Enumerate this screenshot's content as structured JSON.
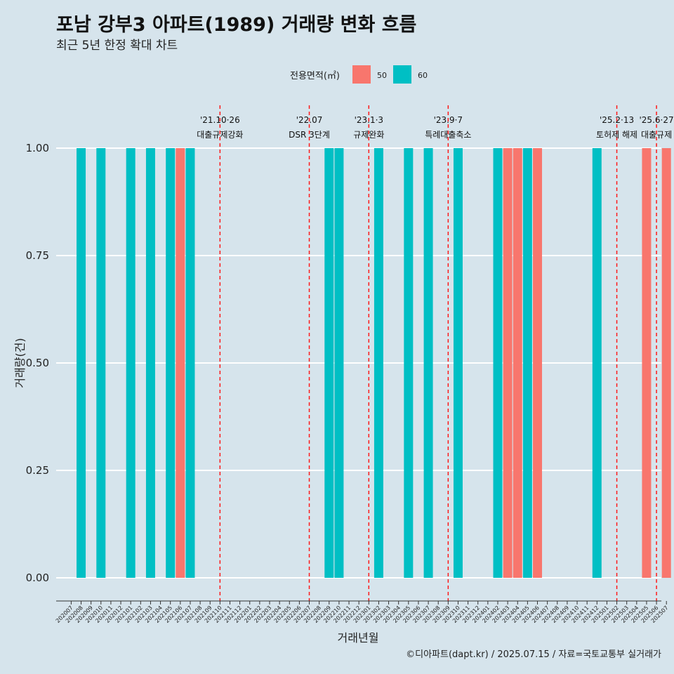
{
  "title": "포남 강부3 아파트(1989) 거래량 변화 흐름",
  "subtitle": "최근 5년 한정 확대 차트",
  "caption": "©디아파트(dapt.kr) / 2025.07.15 / 자료=국토교통부 실거래가",
  "colors": {
    "background": "#d6e4ec",
    "s50": "#f8766d",
    "s60": "#00bfc4",
    "event_line": "#ff1a1a",
    "grid": "#ffffff"
  },
  "chart_data": {
    "type": "bar",
    "xlabel": "거래년월",
    "ylabel": "거래량(건)",
    "ylim": [
      0,
      1
    ],
    "yticks": [
      "0.00",
      "0.25",
      "0.50",
      "0.75",
      "1.00"
    ],
    "legend": {
      "title": "전용면적(㎡)",
      "position": "top",
      "entries": [
        "50",
        "60"
      ]
    },
    "categories": [
      "202007",
      "202008",
      "202009",
      "202010",
      "202011",
      "202012",
      "202101",
      "202102",
      "202103",
      "202104",
      "202105",
      "202106",
      "202107",
      "202108",
      "202109",
      "202110",
      "202111",
      "202112",
      "202201",
      "202202",
      "202203",
      "202204",
      "202205",
      "202206",
      "202207",
      "202208",
      "202209",
      "202210",
      "202211",
      "202212",
      "202301",
      "202302",
      "202303",
      "202304",
      "202305",
      "202306",
      "202307",
      "202308",
      "202309",
      "202310",
      "202311",
      "202312",
      "202401",
      "202402",
      "202403",
      "202404",
      "202405",
      "202406",
      "202407",
      "202408",
      "202409",
      "202410",
      "202411",
      "202412",
      "202501",
      "202502",
      "202503",
      "202504",
      "202505",
      "202506",
      "202507"
    ],
    "series": [
      {
        "name": "50",
        "color": "#f8766d",
        "points": [
          {
            "x": "202106",
            "y": 1
          },
          {
            "x": "202403",
            "y": 1
          },
          {
            "x": "202404",
            "y": 1
          },
          {
            "x": "202406",
            "y": 1
          },
          {
            "x": "202505",
            "y": 1
          },
          {
            "x": "202507",
            "y": 1
          }
        ]
      },
      {
        "name": "60",
        "color": "#00bfc4",
        "points": [
          {
            "x": "202008",
            "y": 1
          },
          {
            "x": "202010",
            "y": 1
          },
          {
            "x": "202101",
            "y": 1
          },
          {
            "x": "202103",
            "y": 1
          },
          {
            "x": "202105",
            "y": 1
          },
          {
            "x": "202107",
            "y": 1
          },
          {
            "x": "202209",
            "y": 1
          },
          {
            "x": "202210",
            "y": 1
          },
          {
            "x": "202302",
            "y": 1
          },
          {
            "x": "202305",
            "y": 1
          },
          {
            "x": "202307",
            "y": 1
          },
          {
            "x": "202310",
            "y": 1
          },
          {
            "x": "202402",
            "y": 1
          },
          {
            "x": "202405",
            "y": 1
          },
          {
            "x": "202412",
            "y": 1
          }
        ]
      }
    ],
    "events": [
      {
        "date": "'21.10·26",
        "label": "대출규제강화",
        "x": "202110"
      },
      {
        "date": "'22.07",
        "label": "DSR 3단계",
        "x": "202207"
      },
      {
        "date": "'23.1·3",
        "label": "규제완화",
        "x": "202301"
      },
      {
        "date": "'23.9·7",
        "label": "특례대출축소",
        "x": "202309"
      },
      {
        "date": "'25.2·13",
        "label": "토허제 해제",
        "x": "202502"
      },
      {
        "date": "'25.6·27",
        "label": "대출규제",
        "x": "202506"
      }
    ]
  }
}
